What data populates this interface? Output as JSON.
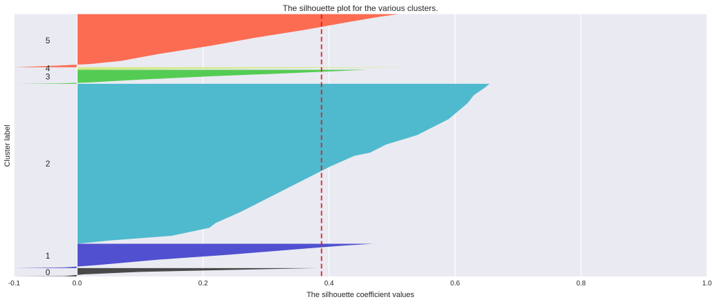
{
  "chart_data": {
    "type": "area",
    "orientation": "horizontal",
    "title": "The silhouette plot for the various clusters.",
    "xlabel": "The silhouette coefficient values",
    "ylabel": "Cluster label",
    "xlim": [
      -0.1,
      1.0
    ],
    "ylim": [
      0,
      410
    ],
    "x_ticks": [
      -0.1,
      0.0,
      0.2,
      0.4,
      0.6,
      0.8,
      1.0
    ],
    "x_tick_labels": [
      "-0.1",
      "0.0",
      "0.2",
      "0.4",
      "0.6",
      "0.8",
      "1.0"
    ],
    "grid": true,
    "average_silhouette": 0.388,
    "average_line_color": "#e31a1c",
    "background_color": "#eaeaf2",
    "clusters": [
      {
        "label": "0",
        "color": "#404040",
        "y_range": [
          0,
          13
        ],
        "profile": [
          [
            0,
            -0.1
          ],
          [
            0.04,
            -0.02
          ],
          [
            0.25,
            0.01
          ],
          [
            0.55,
            0.1
          ],
          [
            0.8,
            0.25
          ],
          [
            1.0,
            0.38
          ]
        ]
      },
      {
        "label": "1",
        "color": "#4848cf",
        "y_range": [
          13,
          51
        ],
        "profile": [
          [
            0,
            -0.1
          ],
          [
            0.03,
            -0.02
          ],
          [
            0.12,
            0.03
          ],
          [
            0.35,
            0.13
          ],
          [
            0.55,
            0.24
          ],
          [
            0.8,
            0.36
          ],
          [
            0.92,
            0.42
          ],
          [
            1.0,
            0.47
          ]
        ]
      },
      {
        "label": "2",
        "color": "#47b7cb",
        "y_range": [
          51,
          301
        ],
        "profile": [
          [
            0,
            0.0
          ],
          [
            0.02,
            0.05
          ],
          [
            0.05,
            0.15
          ],
          [
            0.1,
            0.21
          ],
          [
            0.13,
            0.22
          ],
          [
            0.2,
            0.26
          ],
          [
            0.3,
            0.31
          ],
          [
            0.4,
            0.36
          ],
          [
            0.48,
            0.4
          ],
          [
            0.55,
            0.44
          ],
          [
            0.57,
            0.465
          ],
          [
            0.62,
            0.49
          ],
          [
            0.68,
            0.54
          ],
          [
            0.72,
            0.56
          ],
          [
            0.78,
            0.59
          ],
          [
            0.83,
            0.605
          ],
          [
            0.88,
            0.62
          ],
          [
            0.93,
            0.63
          ],
          [
            0.97,
            0.645
          ],
          [
            1.0,
            0.655
          ]
        ]
      },
      {
        "label": "3",
        "color": "#4cca4a",
        "y_range": [
          301,
          323
        ],
        "profile": [
          [
            0,
            -0.1
          ],
          [
            0.03,
            -0.03
          ],
          [
            0.1,
            0.02
          ],
          [
            0.3,
            0.1
          ],
          [
            0.55,
            0.22
          ],
          [
            0.8,
            0.36
          ],
          [
            1.0,
            0.46
          ]
        ]
      },
      {
        "label": "4",
        "color": "#d4ea7c",
        "y_range": [
          323,
          327
        ],
        "profile": [
          [
            0,
            0.0
          ],
          [
            0.4,
            0.2
          ],
          [
            1.0,
            0.545
          ]
        ]
      },
      {
        "label": "5",
        "color": "#fd6549",
        "y_range": [
          327,
          410
        ],
        "profile": [
          [
            0,
            -0.1
          ],
          [
            0.03,
            -0.03
          ],
          [
            0.06,
            0.02
          ],
          [
            0.12,
            0.07
          ],
          [
            0.25,
            0.13
          ],
          [
            0.4,
            0.21
          ],
          [
            0.55,
            0.28
          ],
          [
            0.7,
            0.36
          ],
          [
            0.85,
            0.43
          ],
          [
            0.95,
            0.48
          ],
          [
            1.0,
            0.51
          ]
        ]
      }
    ]
  }
}
